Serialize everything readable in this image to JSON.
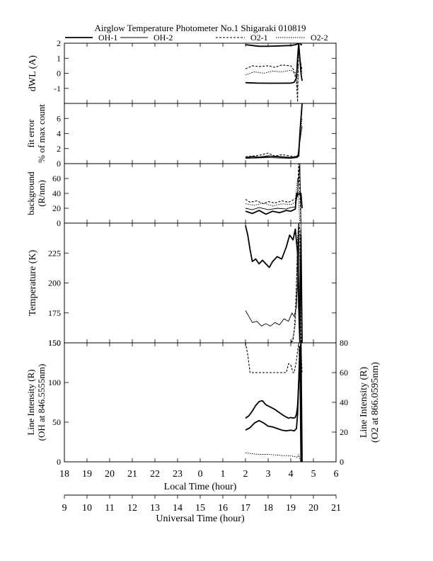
{
  "chart_data": {
    "type": "line",
    "title": "Airglow Temperature Photometer No.1  Shigaraki  010819",
    "legend_placement": "top",
    "series": [
      {
        "name": "OH-1",
        "style": "solid"
      },
      {
        "name": "OH-2",
        "style": "thin-solid"
      },
      {
        "name": "O2-1",
        "style": "dashed"
      },
      {
        "name": "O2-2",
        "style": "dotted"
      }
    ],
    "local_axis": {
      "label": "Local Time (hour)",
      "ticks": [
        "18",
        "19",
        "20",
        "21",
        "22",
        "23",
        "0",
        "1",
        "2",
        "3",
        "4",
        "5",
        "6"
      ],
      "range_hours": [
        18,
        30
      ]
    },
    "ut_axis": {
      "label": "Universal Time (hour)",
      "ticks": [
        "9",
        "10",
        "11",
        "12",
        "13",
        "14",
        "15",
        "16",
        "17",
        "18",
        "19",
        "20",
        "21"
      ],
      "range_hours": [
        9,
        21
      ]
    },
    "panels": [
      {
        "id": "dwl",
        "ylabel": [
          "dWL (A)"
        ],
        "ylim": [
          -2,
          2
        ],
        "yticks": [
          -2,
          -1,
          0,
          1,
          2
        ],
        "ytick_labels": [
          "",
          "-1",
          "0",
          "1",
          "2"
        ],
        "traces": [
          {
            "series": "OH-1",
            "x": [
              26.0,
              26.3,
              26.6,
              27.0,
              27.5,
              28.0,
              28.2,
              28.3,
              28.35,
              28.4,
              28.45,
              28.5
            ],
            "y": [
              1.9,
              1.85,
              1.8,
              1.8,
              1.82,
              1.85,
              1.9,
              1.95,
              2.0,
              2.0,
              1.9,
              1.9
            ]
          },
          {
            "series": "OH-1",
            "x": [
              26.0,
              26.5,
              27.0,
              27.5,
              28.0,
              28.15,
              28.25,
              28.3,
              28.35,
              28.45,
              28.5
            ],
            "y": [
              -0.62,
              -0.65,
              -0.66,
              -0.66,
              -0.65,
              -0.6,
              -0.3,
              1.0,
              2.0,
              0.0,
              -0.5
            ]
          },
          {
            "series": "O2-1",
            "x": [
              26.0,
              26.3,
              26.6,
              27.0,
              27.3,
              27.6,
              28.0,
              28.1,
              28.25,
              28.3,
              28.35,
              28.4,
              28.5
            ],
            "y": [
              0.3,
              0.5,
              0.45,
              0.5,
              0.4,
              0.55,
              0.5,
              0.3,
              -0.5,
              -1.9,
              2.0,
              1.0,
              0.2
            ]
          },
          {
            "series": "O2-2",
            "x": [
              26.0,
              26.4,
              26.8,
              27.2,
              27.6,
              28.0,
              28.2,
              28.3,
              28.35,
              28.45,
              28.5
            ],
            "y": [
              -0.1,
              0.1,
              0.0,
              0.15,
              0.1,
              0.2,
              0.05,
              -1.0,
              2.0,
              0.5,
              0.0
            ]
          }
        ]
      },
      {
        "id": "fit_error",
        "ylabel": [
          "fit error",
          "% of max count"
        ],
        "ylim": [
          0,
          8
        ],
        "yticks": [
          0,
          2,
          4,
          6,
          8
        ],
        "ytick_labels": [
          "0",
          "2",
          "4",
          "6",
          ""
        ],
        "traces": [
          {
            "series": "OH-1",
            "x": [
              26.0,
              26.3,
              26.6,
              27.0,
              27.5,
              28.0,
              28.2,
              28.35,
              28.4,
              28.5
            ],
            "y": [
              0.8,
              0.9,
              0.85,
              1.0,
              0.9,
              0.8,
              0.9,
              1.0,
              4.0,
              8.0
            ]
          },
          {
            "series": "O2-1",
            "x": [
              26.0,
              26.3,
              26.6,
              27.0,
              27.3,
              27.6,
              28.0,
              28.2,
              28.35,
              28.5
            ],
            "y": [
              0.9,
              1.0,
              1.1,
              1.4,
              1.0,
              1.2,
              1.0,
              0.9,
              1.2,
              7.5
            ]
          },
          {
            "series": "O2-2",
            "x": [
              26.0,
              26.4,
              26.8,
              27.2,
              27.6,
              28.0,
              28.3,
              28.5
            ],
            "y": [
              0.7,
              0.9,
              0.8,
              1.0,
              0.9,
              0.8,
              1.0,
              6.0
            ]
          },
          {
            "series": "OH-2",
            "x": [
              26.0,
              26.5,
              27.0,
              27.5,
              28.0,
              28.3,
              28.5
            ],
            "y": [
              0.7,
              0.75,
              0.8,
              0.75,
              0.7,
              0.8,
              5.0
            ]
          }
        ]
      },
      {
        "id": "background",
        "ylabel": [
          "background",
          "(R/nm)"
        ],
        "ylim": [
          0,
          80
        ],
        "yticks": [
          0,
          20,
          40,
          60,
          80
        ],
        "ytick_labels": [
          "0",
          "20",
          "40",
          "60",
          ""
        ],
        "traces": [
          {
            "series": "OH-1",
            "x": [
              26.0,
              26.3,
              26.6,
              26.9,
              27.2,
              27.5,
              27.8,
              28.0,
              28.2,
              28.25,
              28.3,
              28.4,
              28.45,
              28.5
            ],
            "y": [
              16,
              13,
              17,
              12,
              16,
              14,
              17,
              16,
              19,
              40,
              38,
              40,
              40,
              20
            ]
          },
          {
            "series": "OH-2",
            "x": [
              26.0,
              26.3,
              26.6,
              27.0,
              27.4,
              27.8,
              28.0,
              28.2,
              28.3,
              28.4,
              28.45
            ],
            "y": [
              20,
              18,
              21,
              18,
              20,
              19,
              21,
              22,
              40,
              80,
              0
            ]
          },
          {
            "series": "O2-1",
            "x": [
              26.0,
              26.2,
              26.5,
              26.8,
              27.0,
              27.3,
              27.6,
              27.9,
              28.1,
              28.3,
              28.35,
              28.45
            ],
            "y": [
              32,
              28,
              30,
              26,
              29,
              27,
              30,
              28,
              31,
              35,
              80,
              0
            ]
          },
          {
            "series": "O2-2",
            "x": [
              26.0,
              26.4,
              26.8,
              27.2,
              27.6,
              28.0,
              28.2,
              28.3,
              28.4
            ],
            "y": [
              26,
              24,
              27,
              23,
              26,
              25,
              28,
              60,
              0
            ]
          }
        ]
      },
      {
        "id": "temperature",
        "ylabel": [
          "Temperature (K)"
        ],
        "ylim": [
          150,
          250
        ],
        "yticks": [
          150,
          175,
          200,
          225,
          250
        ],
        "ytick_labels": [
          "150",
          "175",
          "200",
          "225",
          ""
        ],
        "traces": [
          {
            "series": "OH-1",
            "x": [
              26.0,
              26.1,
              26.2,
              26.3,
              26.45,
              26.6,
              26.75,
              26.9,
              27.05,
              27.2,
              27.4,
              27.6,
              27.8,
              27.95,
              28.1,
              28.2,
              28.3,
              28.35,
              28.4,
              28.45,
              28.5
            ],
            "y": [
              248,
              240,
              228,
              218,
              220,
              216,
              219,
              216,
              213,
              218,
              222,
              220,
              230,
              240,
              236,
              245,
              225,
              180,
              150,
              240,
              150
            ]
          },
          {
            "series": "OH-2",
            "x": [
              26.0,
              26.15,
              26.3,
              26.5,
              26.7,
              26.9,
              27.1,
              27.3,
              27.5,
              27.7,
              27.9,
              28.05,
              28.15,
              28.25,
              28.3,
              28.35,
              28.4,
              28.45,
              28.5
            ],
            "y": [
              177,
              172,
              167,
              168,
              164,
              166,
              164,
              167,
              165,
              170,
              168,
              175,
              172,
              180,
              200,
              250,
              160,
              245,
              150
            ]
          },
          {
            "series": "O2-1",
            "x": [
              26.0,
              26.5,
              27.0,
              27.5,
              27.8,
              28.0,
              28.1,
              28.15,
              28.2,
              28.25,
              28.3,
              28.35,
              28.4,
              28.45,
              28.5
            ],
            "y": [
              150,
              150,
              150,
              150,
              150,
              150,
              152,
              160,
              175,
              200,
              230,
              250,
              245,
              150,
              160
            ]
          },
          {
            "series": "O2-2",
            "x": [
              26.0,
              26.5,
              27.0,
              27.5,
              28.0,
              28.1,
              28.2,
              28.25,
              28.3,
              28.35,
              28.4,
              28.45,
              28.5
            ],
            "y": [
              150,
              150,
              150,
              150,
              150,
              155,
              165,
              190,
              240,
              250,
              160,
              250,
              150
            ]
          }
        ]
      },
      {
        "id": "intensity",
        "ylabel": [
          "Line Intensity (R)",
          "(OH at 846.5555nm)"
        ],
        "ylim": [
          0,
          150
        ],
        "yticks": [
          0,
          50,
          100,
          150
        ],
        "ytick_labels": [
          "0",
          "50",
          "100",
          "150"
        ],
        "ylabel_right": [
          "Line Intensity (R)",
          "(O2 at 866.0595nm)"
        ],
        "ylim_right": [
          0,
          80
        ],
        "yticks_right": [
          0,
          20,
          40,
          60,
          80
        ],
        "traces": [
          {
            "series": "OH-1",
            "x": [
              26.0,
              26.15,
              26.3,
              26.45,
              26.6,
              26.75,
              26.9,
              27.1,
              27.3,
              27.5,
              27.7,
              27.9,
              28.0,
              28.1,
              28.2,
              28.25,
              28.3,
              28.35,
              28.4,
              28.45,
              28.5
            ],
            "y": [
              55,
              58,
              64,
              71,
              76,
              77,
              72,
              69,
              66,
              62,
              58,
              55,
              56,
              55,
              56,
              60,
              70,
              100,
              140,
              150,
              0
            ]
          },
          {
            "series": "OH-1",
            "x": [
              26.0,
              26.2,
              26.4,
              26.6,
              26.8,
              27.0,
              27.2,
              27.4,
              27.6,
              27.8,
              28.0,
              28.15,
              28.25,
              28.3,
              28.35,
              28.4,
              28.45
            ],
            "y": [
              40,
              43,
              49,
              52,
              49,
              45,
              44,
              42,
              40,
              39,
              40,
              39,
              42,
              60,
              100,
              145,
              0
            ]
          },
          {
            "series": "O2-1",
            "axis": "right",
            "x": [
              26.0,
              26.1,
              26.2,
              26.4,
              26.8,
              27.2,
              27.6,
              27.8,
              27.9,
              28.0,
              28.1,
              28.15,
              28.2,
              28.25,
              28.3,
              28.35,
              28.4,
              28.45,
              28.5
            ],
            "y": [
              80,
              72,
              60,
              60,
              60,
              60,
              60,
              60,
              66,
              65,
              60,
              60,
              64,
              68,
              75,
              80,
              60,
              78,
              60
            ]
          },
          {
            "series": "O2-2",
            "axis": "right",
            "x": [
              26.0,
              26.3,
              26.6,
              27.0,
              27.4,
              27.8,
              28.0,
              28.2,
              28.3,
              28.35,
              28.4,
              28.45
            ],
            "y": [
              6,
              5.5,
              5,
              5,
              4.5,
              4,
              4,
              3.5,
              3,
              5,
              2,
              0
            ]
          }
        ]
      }
    ]
  }
}
